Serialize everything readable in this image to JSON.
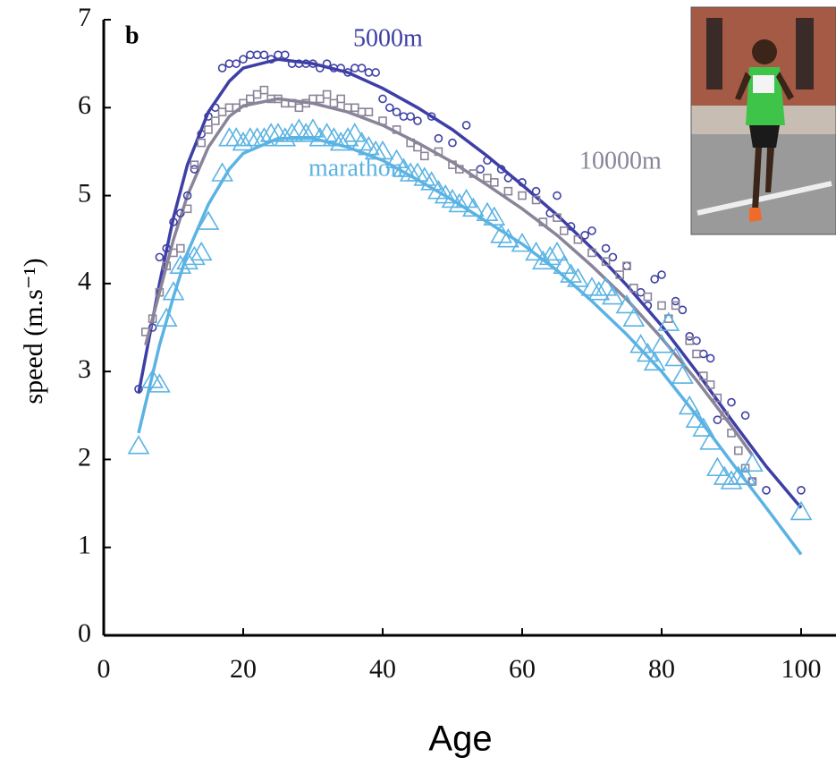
{
  "chart_data": {
    "type": "scatter",
    "panel_label": "b",
    "xlabel": "Age",
    "ylabel": "speed (m.s⁻¹)",
    "xlim": [
      0,
      105
    ],
    "ylim": [
      0,
      7
    ],
    "xticks": [
      0,
      20,
      40,
      60,
      80,
      100
    ],
    "yticks": [
      0,
      1,
      2,
      3,
      4,
      5,
      6,
      7
    ],
    "grid": false,
    "series": [
      {
        "name": "5000m",
        "color": "#3d3fa6",
        "marker": "circle",
        "x": [
          5,
          7,
          8,
          9,
          10,
          11,
          12,
          13,
          14,
          15,
          16,
          17,
          18,
          19,
          20,
          21,
          22,
          23,
          24,
          25,
          26,
          27,
          28,
          29,
          30,
          31,
          32,
          33,
          34,
          35,
          36,
          37,
          38,
          39,
          40,
          41,
          42,
          43,
          44,
          45,
          47,
          48,
          50,
          52,
          54,
          55,
          57,
          58,
          60,
          62,
          64,
          65,
          67,
          69,
          70,
          72,
          73,
          75,
          77,
          78,
          79,
          80,
          82,
          83,
          84,
          85,
          86,
          87,
          88,
          90,
          92,
          93,
          95,
          100
        ],
        "values": [
          2.8,
          3.5,
          4.3,
          4.4,
          4.7,
          4.8,
          5.0,
          5.3,
          5.7,
          5.9,
          6.0,
          6.45,
          6.5,
          6.5,
          6.55,
          6.6,
          6.6,
          6.6,
          6.55,
          6.6,
          6.6,
          6.5,
          6.5,
          6.5,
          6.5,
          6.45,
          6.5,
          6.45,
          6.45,
          6.4,
          6.45,
          6.45,
          6.4,
          6.4,
          6.1,
          6.0,
          5.95,
          5.9,
          5.9,
          5.85,
          5.9,
          5.65,
          5.6,
          5.8,
          5.3,
          5.4,
          5.3,
          5.2,
          5.15,
          5.05,
          4.8,
          5.0,
          4.65,
          4.55,
          4.6,
          4.4,
          4.3,
          4.2,
          3.9,
          3.75,
          4.05,
          4.1,
          3.8,
          3.7,
          3.4,
          3.35,
          3.2,
          3.15,
          2.45,
          2.65,
          2.5,
          1.75,
          1.65,
          1.65
        ],
        "fit_x": [
          5,
          8,
          10,
          12,
          15,
          18,
          20,
          25,
          30,
          35,
          40,
          45,
          50,
          55,
          60,
          65,
          70,
          75,
          80,
          85,
          90,
          95,
          100
        ],
        "fit_values": [
          2.75,
          4.0,
          4.75,
          5.35,
          5.95,
          6.3,
          6.45,
          6.55,
          6.5,
          6.4,
          6.22,
          6.0,
          5.75,
          5.45,
          5.12,
          4.78,
          4.4,
          3.98,
          3.52,
          3.0,
          2.45,
          1.92,
          1.45
        ]
      },
      {
        "name": "10000m",
        "color": "#8a8499",
        "marker": "square",
        "x": [
          6,
          7,
          8,
          9,
          10,
          11,
          12,
          13,
          14,
          15,
          16,
          17,
          18,
          19,
          20,
          21,
          22,
          23,
          24,
          25,
          26,
          27,
          28,
          29,
          30,
          31,
          32,
          33,
          34,
          35,
          36,
          37,
          38,
          40,
          42,
          44,
          45,
          46,
          48,
          50,
          51,
          53,
          55,
          56,
          58,
          60,
          62,
          63,
          65,
          66,
          68,
          70,
          72,
          74,
          75,
          76,
          78,
          80,
          81,
          82,
          84,
          85,
          86,
          87,
          88,
          89,
          90,
          91,
          92,
          93
        ],
        "values": [
          3.45,
          3.6,
          3.9,
          4.2,
          4.35,
          4.4,
          4.85,
          5.35,
          5.6,
          5.75,
          5.85,
          5.95,
          6.0,
          6.0,
          6.05,
          6.1,
          6.15,
          6.2,
          6.1,
          6.1,
          6.05,
          6.05,
          6.0,
          6.05,
          6.1,
          6.1,
          6.15,
          6.05,
          6.1,
          6.0,
          6.0,
          5.95,
          5.95,
          5.85,
          5.75,
          5.6,
          5.55,
          5.45,
          5.5,
          5.35,
          5.3,
          5.25,
          5.2,
          5.15,
          5.05,
          5.0,
          4.95,
          4.7,
          4.75,
          4.6,
          4.5,
          4.35,
          4.25,
          4.1,
          4.2,
          3.95,
          3.85,
          3.75,
          3.6,
          3.75,
          3.35,
          3.2,
          2.95,
          2.85,
          2.7,
          2.5,
          2.3,
          2.1,
          1.9,
          1.75
        ],
        "fit_x": [
          6,
          8,
          10,
          12,
          15,
          18,
          20,
          25,
          30,
          35,
          40,
          45,
          50,
          55,
          60,
          65,
          70,
          75,
          80,
          85,
          90,
          93
        ],
        "fit_values": [
          3.3,
          3.9,
          4.5,
          5.0,
          5.55,
          5.9,
          6.02,
          6.1,
          6.05,
          5.95,
          5.8,
          5.6,
          5.38,
          5.12,
          4.85,
          4.55,
          4.2,
          3.82,
          3.38,
          2.9,
          2.38,
          2.05
        ]
      },
      {
        "name": "marathon",
        "color": "#5bb3e3",
        "marker": "triangle",
        "x": [
          5,
          7,
          8,
          9,
          10,
          11,
          12,
          13,
          14,
          15,
          17,
          18,
          19,
          20,
          21,
          22,
          23,
          24,
          25,
          26,
          27,
          28,
          29,
          30,
          31,
          32,
          33,
          34,
          35,
          36,
          37,
          38,
          39,
          40,
          42,
          43,
          44,
          45,
          46,
          47,
          48,
          49,
          50,
          51,
          52,
          53,
          55,
          56,
          57,
          58,
          60,
          62,
          63,
          64,
          65,
          66,
          67,
          68,
          70,
          71,
          72,
          73,
          75,
          76,
          77,
          78,
          79,
          80,
          81,
          82,
          83,
          84,
          85,
          86,
          87,
          88,
          89,
          90,
          91,
          92,
          93,
          100
        ],
        "values": [
          2.15,
          2.9,
          2.85,
          3.6,
          3.9,
          4.2,
          4.25,
          4.3,
          4.35,
          4.7,
          5.25,
          5.65,
          5.65,
          5.6,
          5.65,
          5.65,
          5.65,
          5.7,
          5.7,
          5.65,
          5.7,
          5.75,
          5.7,
          5.75,
          5.65,
          5.7,
          5.65,
          5.6,
          5.65,
          5.7,
          5.6,
          5.55,
          5.5,
          5.5,
          5.4,
          5.3,
          5.25,
          5.25,
          5.2,
          5.15,
          5.05,
          5.0,
          4.95,
          4.9,
          4.95,
          4.85,
          4.8,
          4.75,
          4.55,
          4.5,
          4.45,
          4.35,
          4.25,
          4.3,
          4.35,
          4.2,
          4.1,
          4.05,
          3.95,
          3.9,
          3.95,
          3.85,
          3.75,
          3.6,
          3.3,
          3.2,
          3.1,
          3.3,
          3.55,
          3.15,
          2.95,
          2.6,
          2.45,
          2.35,
          2.2,
          1.9,
          1.8,
          1.75,
          1.8,
          1.8,
          1.95,
          1.4
        ],
        "fit_x": [
          5,
          8,
          10,
          12,
          15,
          18,
          20,
          25,
          30,
          35,
          40,
          45,
          50,
          55,
          60,
          65,
          70,
          75,
          80,
          85,
          90,
          95,
          100
        ],
        "fit_values": [
          2.3,
          3.3,
          3.85,
          4.35,
          4.9,
          5.3,
          5.48,
          5.65,
          5.65,
          5.55,
          5.4,
          5.18,
          4.95,
          4.7,
          4.45,
          4.15,
          3.8,
          3.42,
          3.0,
          2.5,
          1.97,
          1.45,
          0.92
        ]
      }
    ]
  }
}
